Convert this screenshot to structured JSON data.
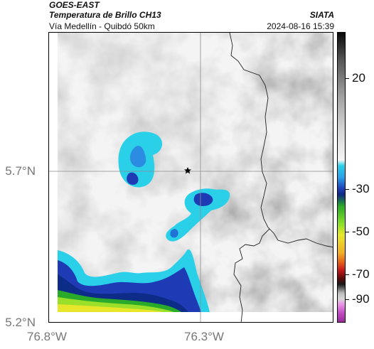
{
  "header": {
    "title_line1": "GOES-EAST",
    "title_line2": "Temperatura de Brillo CH13",
    "subtitle": "Vía Medellín - Quibdó 50km",
    "agency": "SIATA",
    "datetime": "2024-08-16 15:39"
  },
  "map": {
    "y_ticks": [
      "5.7°N",
      "5.2°N"
    ],
    "x_ticks": [
      "76.8°W",
      "76.3°W"
    ],
    "marker_icon": "star-icon",
    "grid_color": "#8c8c8c",
    "border_color": "#222222"
  },
  "colorbar": {
    "ticks": [
      "20",
      "-30",
      "-50",
      "-70",
      "-90"
    ],
    "colors": {
      "warm_dark": "#1a1a1a",
      "warm_light": "#f2f2f2",
      "cyan": "#2ad0e8",
      "blue": "#1e3bb5",
      "green": "#2aaa2a",
      "yellow": "#e8e62a",
      "orange": "#e86a1a",
      "red": "#c81a1a",
      "magenta": "#c04ac0"
    }
  }
}
